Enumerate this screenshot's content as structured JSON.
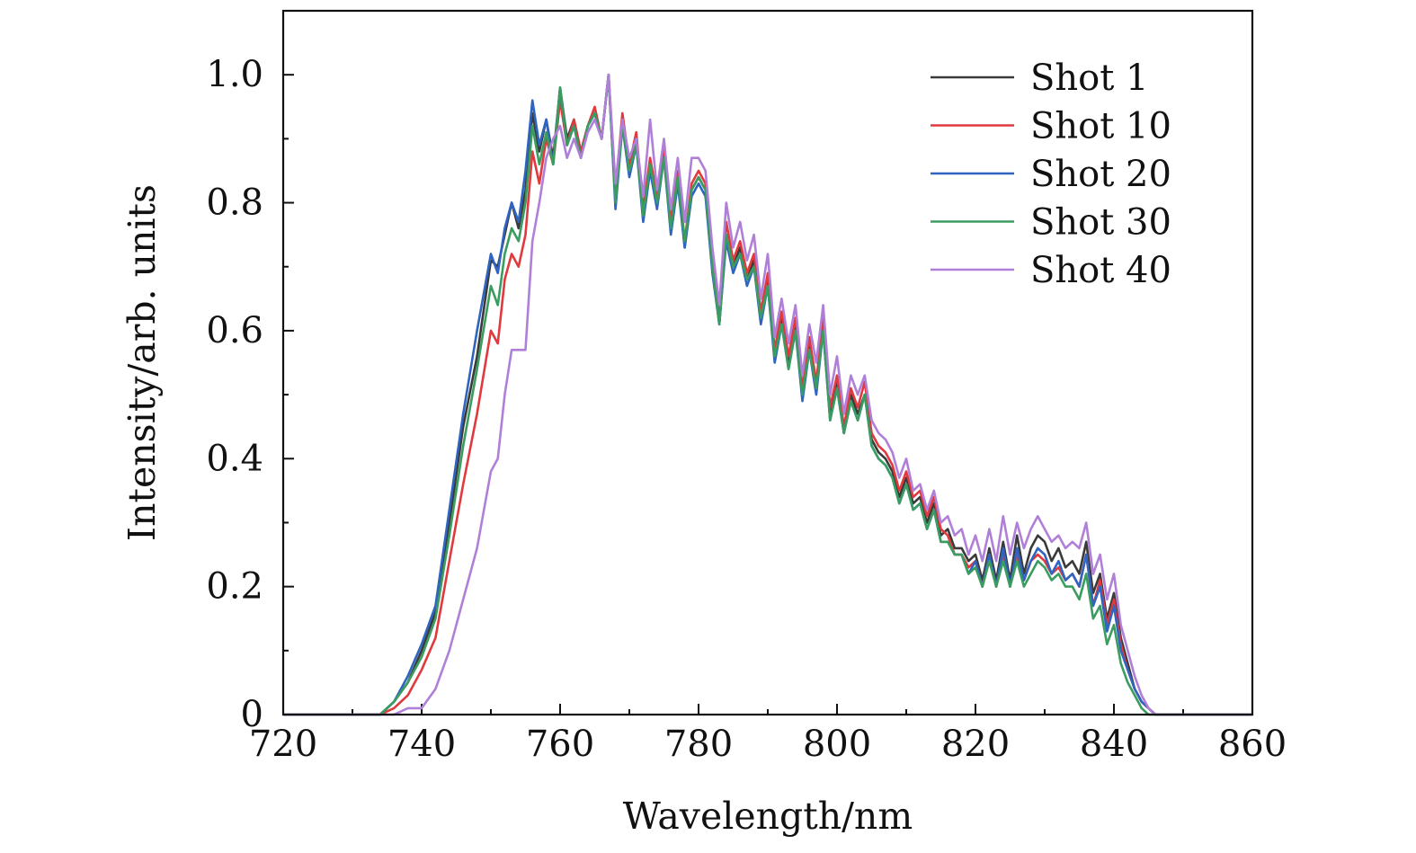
{
  "chart_data": {
    "type": "line",
    "xlabel": "Wavelength/nm",
    "ylabel": "Intensity/arb. units",
    "xlim": [
      720,
      860
    ],
    "ylim": [
      0,
      1.1
    ],
    "x_ticks": [
      720,
      740,
      760,
      780,
      800,
      820,
      840,
      860
    ],
    "x_tick_labels": [
      "720",
      "740",
      "760",
      "780",
      "800",
      "820",
      "840",
      "860"
    ],
    "y_ticks": [
      0,
      0.2,
      0.4,
      0.6,
      0.8,
      1.0
    ],
    "y_tick_labels": [
      "0",
      "0.2",
      "0.4",
      "0.6",
      "0.8",
      "1.0"
    ],
    "grid": false,
    "legend_position": "top-right",
    "series": [
      {
        "name": "Shot 1",
        "color": "#3a3a3a",
        "x": [
          720,
          734,
          736,
          738,
          740,
          742,
          744,
          746,
          748,
          750,
          751,
          752,
          753,
          754,
          755,
          756,
          757,
          758,
          759,
          760,
          761,
          762,
          763,
          764,
          765,
          766,
          767,
          768,
          769,
          770,
          771,
          772,
          773,
          774,
          775,
          776,
          777,
          778,
          779,
          780,
          781,
          782,
          783,
          784,
          785,
          786,
          787,
          788,
          789,
          790,
          791,
          792,
          793,
          794,
          795,
          796,
          797,
          798,
          799,
          800,
          801,
          802,
          803,
          804,
          805,
          806,
          807,
          808,
          809,
          810,
          811,
          812,
          813,
          814,
          815,
          816,
          817,
          818,
          819,
          820,
          821,
          822,
          823,
          824,
          825,
          826,
          827,
          828,
          829,
          830,
          831,
          832,
          833,
          834,
          835,
          836,
          837,
          838,
          839,
          840,
          841,
          842,
          843,
          844,
          845,
          846,
          848,
          850,
          860
        ],
        "y": [
          0.0,
          0.0,
          0.02,
          0.05,
          0.1,
          0.16,
          0.3,
          0.45,
          0.56,
          0.71,
          0.7,
          0.75,
          0.8,
          0.76,
          0.82,
          0.94,
          0.88,
          0.93,
          0.87,
          0.98,
          0.9,
          0.93,
          0.88,
          0.92,
          0.94,
          0.9,
          1.0,
          0.8,
          0.93,
          0.85,
          0.9,
          0.78,
          0.86,
          0.8,
          0.88,
          0.76,
          0.84,
          0.73,
          0.82,
          0.84,
          0.82,
          0.7,
          0.61,
          0.75,
          0.7,
          0.73,
          0.68,
          0.71,
          0.62,
          0.68,
          0.56,
          0.62,
          0.55,
          0.61,
          0.5,
          0.58,
          0.51,
          0.61,
          0.47,
          0.52,
          0.44,
          0.5,
          0.47,
          0.5,
          0.43,
          0.41,
          0.4,
          0.38,
          0.34,
          0.37,
          0.33,
          0.34,
          0.3,
          0.33,
          0.28,
          0.29,
          0.26,
          0.26,
          0.24,
          0.25,
          0.21,
          0.26,
          0.21,
          0.27,
          0.21,
          0.28,
          0.22,
          0.26,
          0.28,
          0.27,
          0.24,
          0.26,
          0.23,
          0.24,
          0.22,
          0.27,
          0.19,
          0.22,
          0.15,
          0.19,
          0.12,
          0.08,
          0.04,
          0.02,
          0.01,
          0.0,
          0.0,
          0.0,
          0.0
        ]
      },
      {
        "name": "Shot 10",
        "color": "#e0393e",
        "x": [
          720,
          734,
          736,
          738,
          740,
          742,
          744,
          746,
          748,
          750,
          751,
          752,
          753,
          754,
          755,
          756,
          757,
          758,
          759,
          760,
          761,
          762,
          763,
          764,
          765,
          766,
          767,
          768,
          769,
          770,
          771,
          772,
          773,
          774,
          775,
          776,
          777,
          778,
          779,
          780,
          781,
          782,
          783,
          784,
          785,
          786,
          787,
          788,
          789,
          790,
          791,
          792,
          793,
          794,
          795,
          796,
          797,
          798,
          799,
          800,
          801,
          802,
          803,
          804,
          805,
          806,
          807,
          808,
          809,
          810,
          811,
          812,
          813,
          814,
          815,
          816,
          817,
          818,
          819,
          820,
          821,
          822,
          823,
          824,
          825,
          826,
          827,
          828,
          829,
          830,
          831,
          832,
          833,
          834,
          835,
          836,
          837,
          838,
          839,
          840,
          841,
          842,
          843,
          844,
          845,
          846,
          848,
          850,
          860
        ],
        "y": [
          0.0,
          0.0,
          0.01,
          0.03,
          0.07,
          0.12,
          0.24,
          0.36,
          0.47,
          0.6,
          0.58,
          0.68,
          0.72,
          0.7,
          0.75,
          0.88,
          0.83,
          0.9,
          0.86,
          0.96,
          0.89,
          0.93,
          0.88,
          0.92,
          0.95,
          0.9,
          1.0,
          0.82,
          0.94,
          0.86,
          0.91,
          0.79,
          0.87,
          0.81,
          0.89,
          0.77,
          0.85,
          0.74,
          0.83,
          0.85,
          0.83,
          0.71,
          0.62,
          0.77,
          0.71,
          0.74,
          0.69,
          0.72,
          0.63,
          0.69,
          0.57,
          0.63,
          0.56,
          0.62,
          0.51,
          0.59,
          0.52,
          0.62,
          0.48,
          0.53,
          0.45,
          0.51,
          0.48,
          0.52,
          0.44,
          0.42,
          0.41,
          0.39,
          0.35,
          0.38,
          0.34,
          0.35,
          0.31,
          0.34,
          0.29,
          0.28,
          0.25,
          0.25,
          0.23,
          0.24,
          0.2,
          0.25,
          0.2,
          0.25,
          0.2,
          0.25,
          0.21,
          0.24,
          0.25,
          0.24,
          0.22,
          0.23,
          0.21,
          0.22,
          0.2,
          0.25,
          0.17,
          0.21,
          0.14,
          0.18,
          0.11,
          0.07,
          0.04,
          0.02,
          0.01,
          0.0,
          0.0,
          0.0,
          0.0
        ]
      },
      {
        "name": "Shot 20",
        "color": "#2f64c0",
        "x": [
          720,
          734,
          736,
          738,
          740,
          742,
          744,
          746,
          748,
          750,
          751,
          752,
          753,
          754,
          755,
          756,
          757,
          758,
          759,
          760,
          761,
          762,
          763,
          764,
          765,
          766,
          767,
          768,
          769,
          770,
          771,
          772,
          773,
          774,
          775,
          776,
          777,
          778,
          779,
          780,
          781,
          782,
          783,
          784,
          785,
          786,
          787,
          788,
          789,
          790,
          791,
          792,
          793,
          794,
          795,
          796,
          797,
          798,
          799,
          800,
          801,
          802,
          803,
          804,
          805,
          806,
          807,
          808,
          809,
          810,
          811,
          812,
          813,
          814,
          815,
          816,
          817,
          818,
          819,
          820,
          821,
          822,
          823,
          824,
          825,
          826,
          827,
          828,
          829,
          830,
          831,
          832,
          833,
          834,
          835,
          836,
          837,
          838,
          839,
          840,
          841,
          842,
          843,
          844,
          845,
          846,
          848,
          850,
          860
        ],
        "y": [
          0.0,
          0.0,
          0.02,
          0.06,
          0.11,
          0.17,
          0.32,
          0.47,
          0.6,
          0.72,
          0.69,
          0.76,
          0.8,
          0.77,
          0.85,
          0.96,
          0.89,
          0.93,
          0.86,
          0.98,
          0.89,
          0.92,
          0.87,
          0.92,
          0.94,
          0.9,
          1.0,
          0.79,
          0.92,
          0.84,
          0.89,
          0.77,
          0.85,
          0.79,
          0.87,
          0.75,
          0.83,
          0.73,
          0.81,
          0.83,
          0.81,
          0.69,
          0.61,
          0.74,
          0.69,
          0.72,
          0.67,
          0.7,
          0.61,
          0.67,
          0.55,
          0.61,
          0.54,
          0.6,
          0.49,
          0.57,
          0.5,
          0.6,
          0.46,
          0.51,
          0.44,
          0.49,
          0.46,
          0.5,
          0.42,
          0.4,
          0.39,
          0.37,
          0.33,
          0.36,
          0.32,
          0.33,
          0.29,
          0.32,
          0.27,
          0.27,
          0.25,
          0.25,
          0.22,
          0.24,
          0.2,
          0.25,
          0.2,
          0.26,
          0.2,
          0.26,
          0.21,
          0.24,
          0.26,
          0.25,
          0.22,
          0.24,
          0.21,
          0.22,
          0.2,
          0.25,
          0.17,
          0.2,
          0.13,
          0.17,
          0.1,
          0.07,
          0.04,
          0.02,
          0.01,
          0.0,
          0.0,
          0.0,
          0.0
        ]
      },
      {
        "name": "Shot 30",
        "color": "#3a9d5f",
        "x": [
          720,
          734,
          736,
          738,
          740,
          742,
          744,
          746,
          748,
          750,
          751,
          752,
          753,
          754,
          755,
          756,
          757,
          758,
          759,
          760,
          761,
          762,
          763,
          764,
          765,
          766,
          767,
          768,
          769,
          770,
          771,
          772,
          773,
          774,
          775,
          776,
          777,
          778,
          779,
          780,
          781,
          782,
          783,
          784,
          785,
          786,
          787,
          788,
          789,
          790,
          791,
          792,
          793,
          794,
          795,
          796,
          797,
          798,
          799,
          800,
          801,
          802,
          803,
          804,
          805,
          806,
          807,
          808,
          809,
          810,
          811,
          812,
          813,
          814,
          815,
          816,
          817,
          818,
          819,
          820,
          821,
          822,
          823,
          824,
          825,
          826,
          827,
          828,
          829,
          830,
          831,
          832,
          833,
          834,
          835,
          836,
          837,
          838,
          839,
          840,
          841,
          842,
          843,
          844,
          845,
          846,
          848,
          850,
          860
        ],
        "y": [
          0.0,
          0.0,
          0.02,
          0.05,
          0.09,
          0.15,
          0.28,
          0.42,
          0.54,
          0.67,
          0.64,
          0.72,
          0.76,
          0.74,
          0.8,
          0.92,
          0.86,
          0.91,
          0.86,
          0.98,
          0.89,
          0.92,
          0.87,
          0.92,
          0.94,
          0.9,
          1.0,
          0.8,
          0.92,
          0.85,
          0.89,
          0.78,
          0.86,
          0.8,
          0.87,
          0.76,
          0.84,
          0.74,
          0.82,
          0.84,
          0.82,
          0.7,
          0.61,
          0.75,
          0.7,
          0.72,
          0.68,
          0.7,
          0.62,
          0.67,
          0.56,
          0.61,
          0.54,
          0.6,
          0.5,
          0.57,
          0.51,
          0.6,
          0.46,
          0.51,
          0.44,
          0.49,
          0.46,
          0.5,
          0.42,
          0.4,
          0.39,
          0.37,
          0.33,
          0.36,
          0.32,
          0.33,
          0.29,
          0.32,
          0.27,
          0.27,
          0.25,
          0.25,
          0.22,
          0.23,
          0.2,
          0.24,
          0.2,
          0.24,
          0.2,
          0.24,
          0.2,
          0.22,
          0.24,
          0.23,
          0.21,
          0.22,
          0.2,
          0.2,
          0.18,
          0.22,
          0.15,
          0.17,
          0.11,
          0.14,
          0.08,
          0.05,
          0.03,
          0.01,
          0.0,
          0.0,
          0.0,
          0.0,
          0.0
        ]
      },
      {
        "name": "Shot 40",
        "color": "#b07fd8",
        "x": [
          720,
          736,
          738,
          740,
          742,
          744,
          746,
          748,
          750,
          751,
          752,
          753,
          754,
          755,
          756,
          757,
          758,
          759,
          760,
          761,
          762,
          763,
          764,
          765,
          766,
          767,
          768,
          769,
          770,
          771,
          772,
          773,
          774,
          775,
          776,
          777,
          778,
          779,
          780,
          781,
          782,
          783,
          784,
          785,
          786,
          787,
          788,
          789,
          790,
          791,
          792,
          793,
          794,
          795,
          796,
          797,
          798,
          799,
          800,
          801,
          802,
          803,
          804,
          805,
          806,
          807,
          808,
          809,
          810,
          811,
          812,
          813,
          814,
          815,
          816,
          817,
          818,
          819,
          820,
          821,
          822,
          823,
          824,
          825,
          826,
          827,
          828,
          829,
          830,
          831,
          832,
          833,
          834,
          835,
          836,
          837,
          838,
          839,
          840,
          841,
          842,
          843,
          844,
          845,
          846,
          847,
          849,
          851,
          860
        ],
        "y": [
          0.0,
          0.0,
          0.01,
          0.01,
          0.04,
          0.1,
          0.18,
          0.26,
          0.38,
          0.4,
          0.5,
          0.57,
          0.57,
          0.57,
          0.74,
          0.8,
          0.87,
          0.9,
          0.92,
          0.87,
          0.9,
          0.87,
          0.91,
          0.93,
          0.9,
          1.0,
          0.83,
          0.93,
          0.87,
          0.9,
          0.81,
          0.93,
          0.82,
          0.9,
          0.79,
          0.87,
          0.77,
          0.87,
          0.87,
          0.85,
          0.73,
          0.64,
          0.8,
          0.73,
          0.77,
          0.71,
          0.75,
          0.65,
          0.72,
          0.59,
          0.65,
          0.58,
          0.64,
          0.53,
          0.61,
          0.55,
          0.64,
          0.5,
          0.56,
          0.47,
          0.53,
          0.5,
          0.53,
          0.46,
          0.44,
          0.43,
          0.41,
          0.37,
          0.4,
          0.35,
          0.36,
          0.32,
          0.35,
          0.3,
          0.31,
          0.28,
          0.29,
          0.25,
          0.28,
          0.24,
          0.29,
          0.24,
          0.31,
          0.25,
          0.3,
          0.26,
          0.29,
          0.31,
          0.29,
          0.27,
          0.28,
          0.26,
          0.27,
          0.26,
          0.3,
          0.22,
          0.25,
          0.18,
          0.22,
          0.14,
          0.1,
          0.06,
          0.03,
          0.01,
          0.0,
          0.0,
          0.0,
          0.0,
          0.0
        ]
      }
    ]
  }
}
